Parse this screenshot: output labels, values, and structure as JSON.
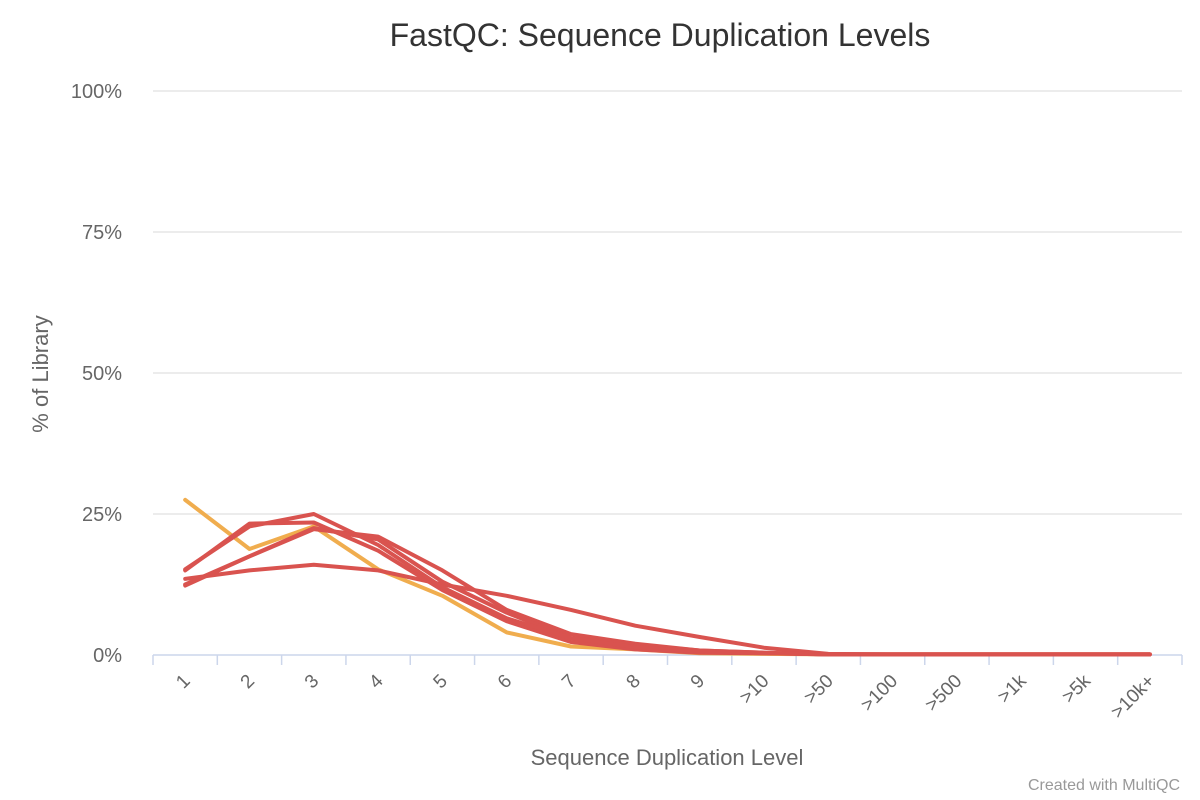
{
  "credit": "Created with MultiQC",
  "chart_data": {
    "type": "line",
    "title": "FastQC: Sequence Duplication Levels",
    "xlabel": "Sequence Duplication Level",
    "ylabel": "% of Library",
    "ylim": [
      0,
      100
    ],
    "yticks": [
      0,
      25,
      50,
      75,
      100
    ],
    "ytick_labels": [
      "0%",
      "25%",
      "50%",
      "75%",
      "100%"
    ],
    "categories": [
      "1",
      "2",
      "3",
      "4",
      "5",
      "6",
      "7",
      "8",
      "9",
      ">10",
      ">50",
      ">100",
      ">500",
      ">1k",
      ">5k",
      ">10k+"
    ],
    "grid": true,
    "legend": "none",
    "series": [
      {
        "color": "#f0ad4e",
        "values": [
          27.5,
          18.8,
          22.8,
          15.2,
          10.5,
          4.0,
          1.5,
          1.0,
          0.3,
          0.2,
          0.1,
          0.1,
          0.1,
          0.1,
          0.1,
          0.1
        ]
      },
      {
        "color": "#d9534f",
        "values": [
          13.5,
          15.0,
          16.0,
          15.0,
          12.5,
          10.5,
          8.0,
          5.2,
          3.2,
          1.3,
          0.2,
          0.1,
          0.1,
          0.1,
          0.1,
          0.1
        ]
      },
      {
        "color": "#d9534f",
        "values": [
          12.3,
          17.5,
          22.3,
          21.0,
          15.0,
          8.0,
          3.7,
          2.0,
          0.8,
          0.4,
          0.1,
          0.1,
          0.1,
          0.1,
          0.1,
          0.1
        ]
      },
      {
        "color": "#d9534f",
        "values": [
          15.0,
          23.3,
          23.5,
          18.5,
          11.5,
          6.0,
          2.3,
          1.0,
          0.4,
          0.3,
          0.1,
          0.1,
          0.1,
          0.1,
          0.1,
          0.1
        ]
      },
      {
        "color": "#d9534f",
        "values": [
          12.5,
          17.5,
          22.5,
          20.5,
          13.0,
          7.5,
          3.0,
          1.8,
          0.8,
          0.4,
          0.1,
          0.1,
          0.1,
          0.1,
          0.1,
          0.1
        ]
      },
      {
        "color": "#d9534f",
        "values": [
          15.2,
          22.8,
          25.0,
          19.5,
          12.0,
          6.5,
          3.0,
          1.4,
          0.6,
          0.3,
          0.1,
          0.1,
          0.1,
          0.1,
          0.1,
          0.1
        ]
      }
    ]
  }
}
